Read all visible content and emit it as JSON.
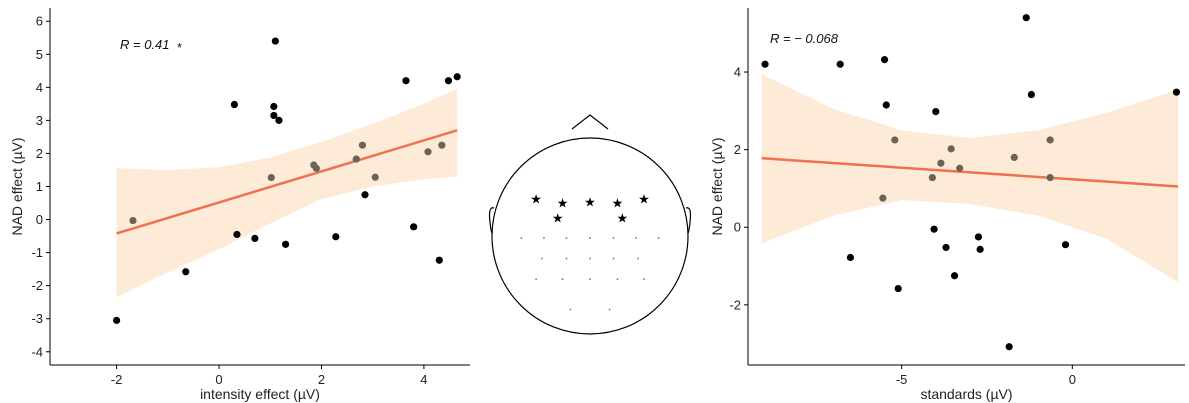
{
  "chart_data": [
    {
      "type": "scatter",
      "xlabel": "intensity effect (µV)",
      "ylabel": "NAD effect (µV)",
      "annotation": "R = 0.41",
      "significance": "*",
      "xlim": [
        -3.3,
        4.9
      ],
      "ylim": [
        -4.4,
        6.4
      ],
      "xticks": [
        -2,
        0,
        2,
        4
      ],
      "yticks": [
        -4,
        -3,
        -2,
        -1,
        0,
        1,
        2,
        3,
        4,
        5,
        6
      ],
      "fit": {
        "x": [
          -2.0,
          4.65
        ],
        "y": [
          -0.42,
          2.7
        ],
        "color": "#f07050"
      },
      "ci_band": {
        "x": [
          -2.0,
          -1.0,
          0.0,
          1.0,
          2.0,
          3.0,
          4.0,
          4.65
        ],
        "upper": [
          1.55,
          1.5,
          1.58,
          1.88,
          2.35,
          2.9,
          3.5,
          3.95
        ],
        "lower": [
          -2.35,
          -1.6,
          -0.9,
          -0.12,
          0.62,
          1.0,
          1.22,
          1.3
        ],
        "color": "#fdebd8"
      },
      "points_black": [
        [
          -2.0,
          -3.05
        ],
        [
          -0.65,
          -1.58
        ],
        [
          0.3,
          3.48
        ],
        [
          0.35,
          -0.45
        ],
        [
          0.7,
          -0.57
        ],
        [
          1.07,
          3.42
        ],
        [
          1.07,
          3.15
        ],
        [
          1.1,
          5.4
        ],
        [
          1.17,
          3.0
        ],
        [
          1.3,
          -0.75
        ],
        [
          2.28,
          -0.52
        ],
        [
          2.85,
          0.75
        ],
        [
          3.65,
          4.2
        ],
        [
          3.8,
          -0.22
        ],
        [
          4.3,
          -1.23
        ],
        [
          4.48,
          4.2
        ],
        [
          4.65,
          4.32
        ]
      ],
      "points_grey": [
        [
          -1.68,
          -0.03
        ],
        [
          1.02,
          1.27
        ],
        [
          1.85,
          1.65
        ],
        [
          1.9,
          1.55
        ],
        [
          2.68,
          1.83
        ],
        [
          2.8,
          2.25
        ],
        [
          3.05,
          1.28
        ],
        [
          4.08,
          2.05
        ],
        [
          4.35,
          2.25
        ]
      ]
    },
    {
      "type": "scatter",
      "xlabel": "standards (µV)",
      "ylabel": "NAD effect (µV)",
      "annotation": "R = − 0.068",
      "xlim": [
        -9.5,
        3.3
      ],
      "ylim": [
        -3.55,
        5.65
      ],
      "xticks": [
        -5,
        0
      ],
      "yticks": [
        -2,
        0,
        2,
        4
      ],
      "fit": {
        "x": [
          -9.1,
          3.1
        ],
        "y": [
          1.78,
          1.05
        ],
        "color": "#f07050"
      },
      "ci_band": {
        "x": [
          -9.1,
          -7.0,
          -5.0,
          -3.0,
          -1.0,
          1.0,
          3.1
        ],
        "upper": [
          3.95,
          3.05,
          2.5,
          2.3,
          2.5,
          2.95,
          3.55
        ],
        "lower": [
          -0.42,
          0.3,
          0.7,
          0.6,
          0.3,
          -0.3,
          -1.42
        ],
        "color": "#fdebd8"
      },
      "points_black": [
        [
          -9.0,
          4.2
        ],
        [
          -6.8,
          4.2
        ],
        [
          -6.5,
          -0.78
        ],
        [
          -5.5,
          4.32
        ],
        [
          -5.45,
          3.15
        ],
        [
          -5.1,
          -1.58
        ],
        [
          -4.0,
          2.98
        ],
        [
          -4.05,
          -0.05
        ],
        [
          -3.7,
          -0.52
        ],
        [
          -3.45,
          -1.25
        ],
        [
          -2.75,
          -0.25
        ],
        [
          -2.7,
          -0.57
        ],
        [
          -1.85,
          -3.08
        ],
        [
          -1.35,
          5.4
        ],
        [
          -1.2,
          3.42
        ],
        [
          -0.2,
          -0.45
        ],
        [
          3.05,
          3.48
        ]
      ],
      "points_grey": [
        [
          -5.55,
          0.75
        ],
        [
          -5.2,
          2.25
        ],
        [
          -4.1,
          1.28
        ],
        [
          -3.85,
          1.65
        ],
        [
          -3.55,
          2.02
        ],
        [
          -3.3,
          1.52
        ],
        [
          -1.7,
          1.8
        ],
        [
          -0.65,
          2.25
        ],
        [
          -0.65,
          1.28
        ]
      ]
    }
  ],
  "head_map": {
    "star_glyph": "★",
    "stars": [
      [
        -0.55,
        -0.37
      ],
      [
        -0.28,
        -0.33
      ],
      [
        0.0,
        -0.34
      ],
      [
        0.28,
        -0.33
      ],
      [
        0.55,
        -0.37
      ],
      [
        -0.33,
        -0.18
      ],
      [
        0.33,
        -0.18
      ]
    ],
    "dots": [
      [
        -0.7,
        0.02
      ],
      [
        -0.47,
        0.02
      ],
      [
        -0.24,
        0.02
      ],
      [
        0.0,
        0.02
      ],
      [
        0.24,
        0.02
      ],
      [
        0.47,
        0.02
      ],
      [
        0.7,
        0.02
      ],
      [
        -0.49,
        0.23
      ],
      [
        -0.24,
        0.23
      ],
      [
        0.0,
        0.23
      ],
      [
        0.24,
        0.23
      ],
      [
        0.49,
        0.23
      ],
      [
        -0.55,
        0.44
      ],
      [
        -0.28,
        0.44
      ],
      [
        0.0,
        0.44
      ],
      [
        0.28,
        0.44
      ],
      [
        0.55,
        0.44
      ],
      [
        -0.2,
        0.75
      ],
      [
        0.2,
        0.75
      ]
    ]
  }
}
